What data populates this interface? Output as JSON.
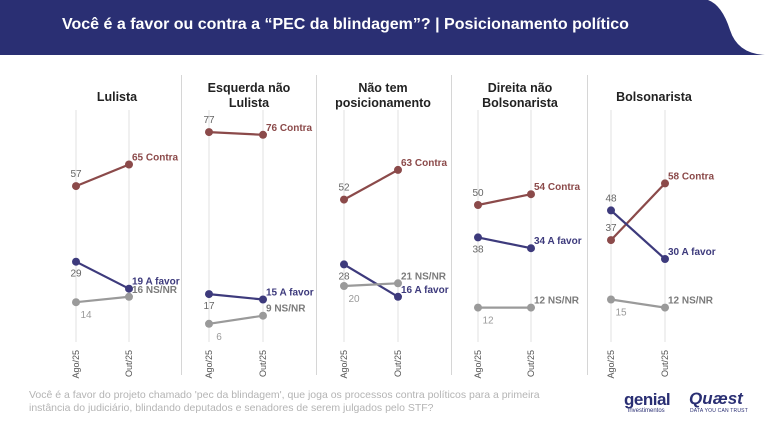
{
  "header": {
    "title": "Você é a favor ou contra a “PEC da blindagem”? | Posicionamento político"
  },
  "colors": {
    "header_bg": "#2a2f73",
    "contra": "#8b4a4a",
    "favor": "#3d3a7c",
    "nsnr": "#9a9a9a"
  },
  "chart_data": {
    "type": "line",
    "x": [
      "Ago/25",
      "Out/25"
    ],
    "ylim": [
      0,
      85
    ],
    "panels": [
      {
        "title": "Lulista",
        "series": [
          {
            "name": "Contra",
            "values": [
              57,
              65
            ],
            "labels": [
              "57",
              "65 Contra"
            ]
          },
          {
            "name": "A favor",
            "values": [
              29,
              19
            ],
            "labels": [
              "29",
              "19 A favor"
            ]
          },
          {
            "name": "NS/NR",
            "values": [
              14,
              16
            ],
            "labels": [
              "14",
              "16 NS/NR"
            ]
          }
        ]
      },
      {
        "title": "Esquerda não Lulista",
        "series": [
          {
            "name": "Contra",
            "values": [
              77,
              76
            ],
            "labels": [
              "77",
              "76 Contra"
            ]
          },
          {
            "name": "A favor",
            "values": [
              17,
              15
            ],
            "labels": [
              "17",
              "15 A favor"
            ]
          },
          {
            "name": "NS/NR",
            "values": [
              6,
              9
            ],
            "labels": [
              "6",
              "9 NS/NR"
            ]
          }
        ]
      },
      {
        "title": "Não tem posicionamento",
        "series": [
          {
            "name": "Contra",
            "values": [
              52,
              63
            ],
            "labels": [
              "52",
              "63 Contra"
            ]
          },
          {
            "name": "A favor",
            "values": [
              28,
              16
            ],
            "labels": [
              "28",
              "16 A favor"
            ]
          },
          {
            "name": "NS/NR",
            "values": [
              20,
              21
            ],
            "labels": [
              "20",
              "21 NS/NR"
            ]
          }
        ]
      },
      {
        "title": "Direita não Bolsonarista",
        "series": [
          {
            "name": "Contra",
            "values": [
              50,
              54
            ],
            "labels": [
              "50",
              "54 Contra"
            ]
          },
          {
            "name": "A favor",
            "values": [
              38,
              34
            ],
            "labels": [
              "38",
              "34 A favor"
            ]
          },
          {
            "name": "NS/NR",
            "values": [
              12,
              12
            ],
            "labels": [
              "12",
              "12 NS/NR"
            ]
          }
        ]
      },
      {
        "title": "Bolsonarista",
        "series": [
          {
            "name": "Contra",
            "values": [
              37,
              58
            ],
            "labels": [
              "37",
              "58 Contra"
            ]
          },
          {
            "name": "A favor",
            "values": [
              48,
              30
            ],
            "labels": [
              "48",
              "30 A favor"
            ]
          },
          {
            "name": "NS/NR",
            "values": [
              15,
              12
            ],
            "labels": [
              "15",
              "12 NS/NR"
            ]
          }
        ]
      }
    ]
  },
  "footnote": "Você é a favor do projeto chamado 'pec da blindagem', que joga os processos contra políticos para a primeira instância do judiciário, blindando deputados e senadores de serem julgados pelo STF?",
  "logos": {
    "genial_name": "genial",
    "genial_sub": "investimentos",
    "quaest_name": "Quæst",
    "quaest_sub": "DATA YOU CAN TRUST"
  }
}
